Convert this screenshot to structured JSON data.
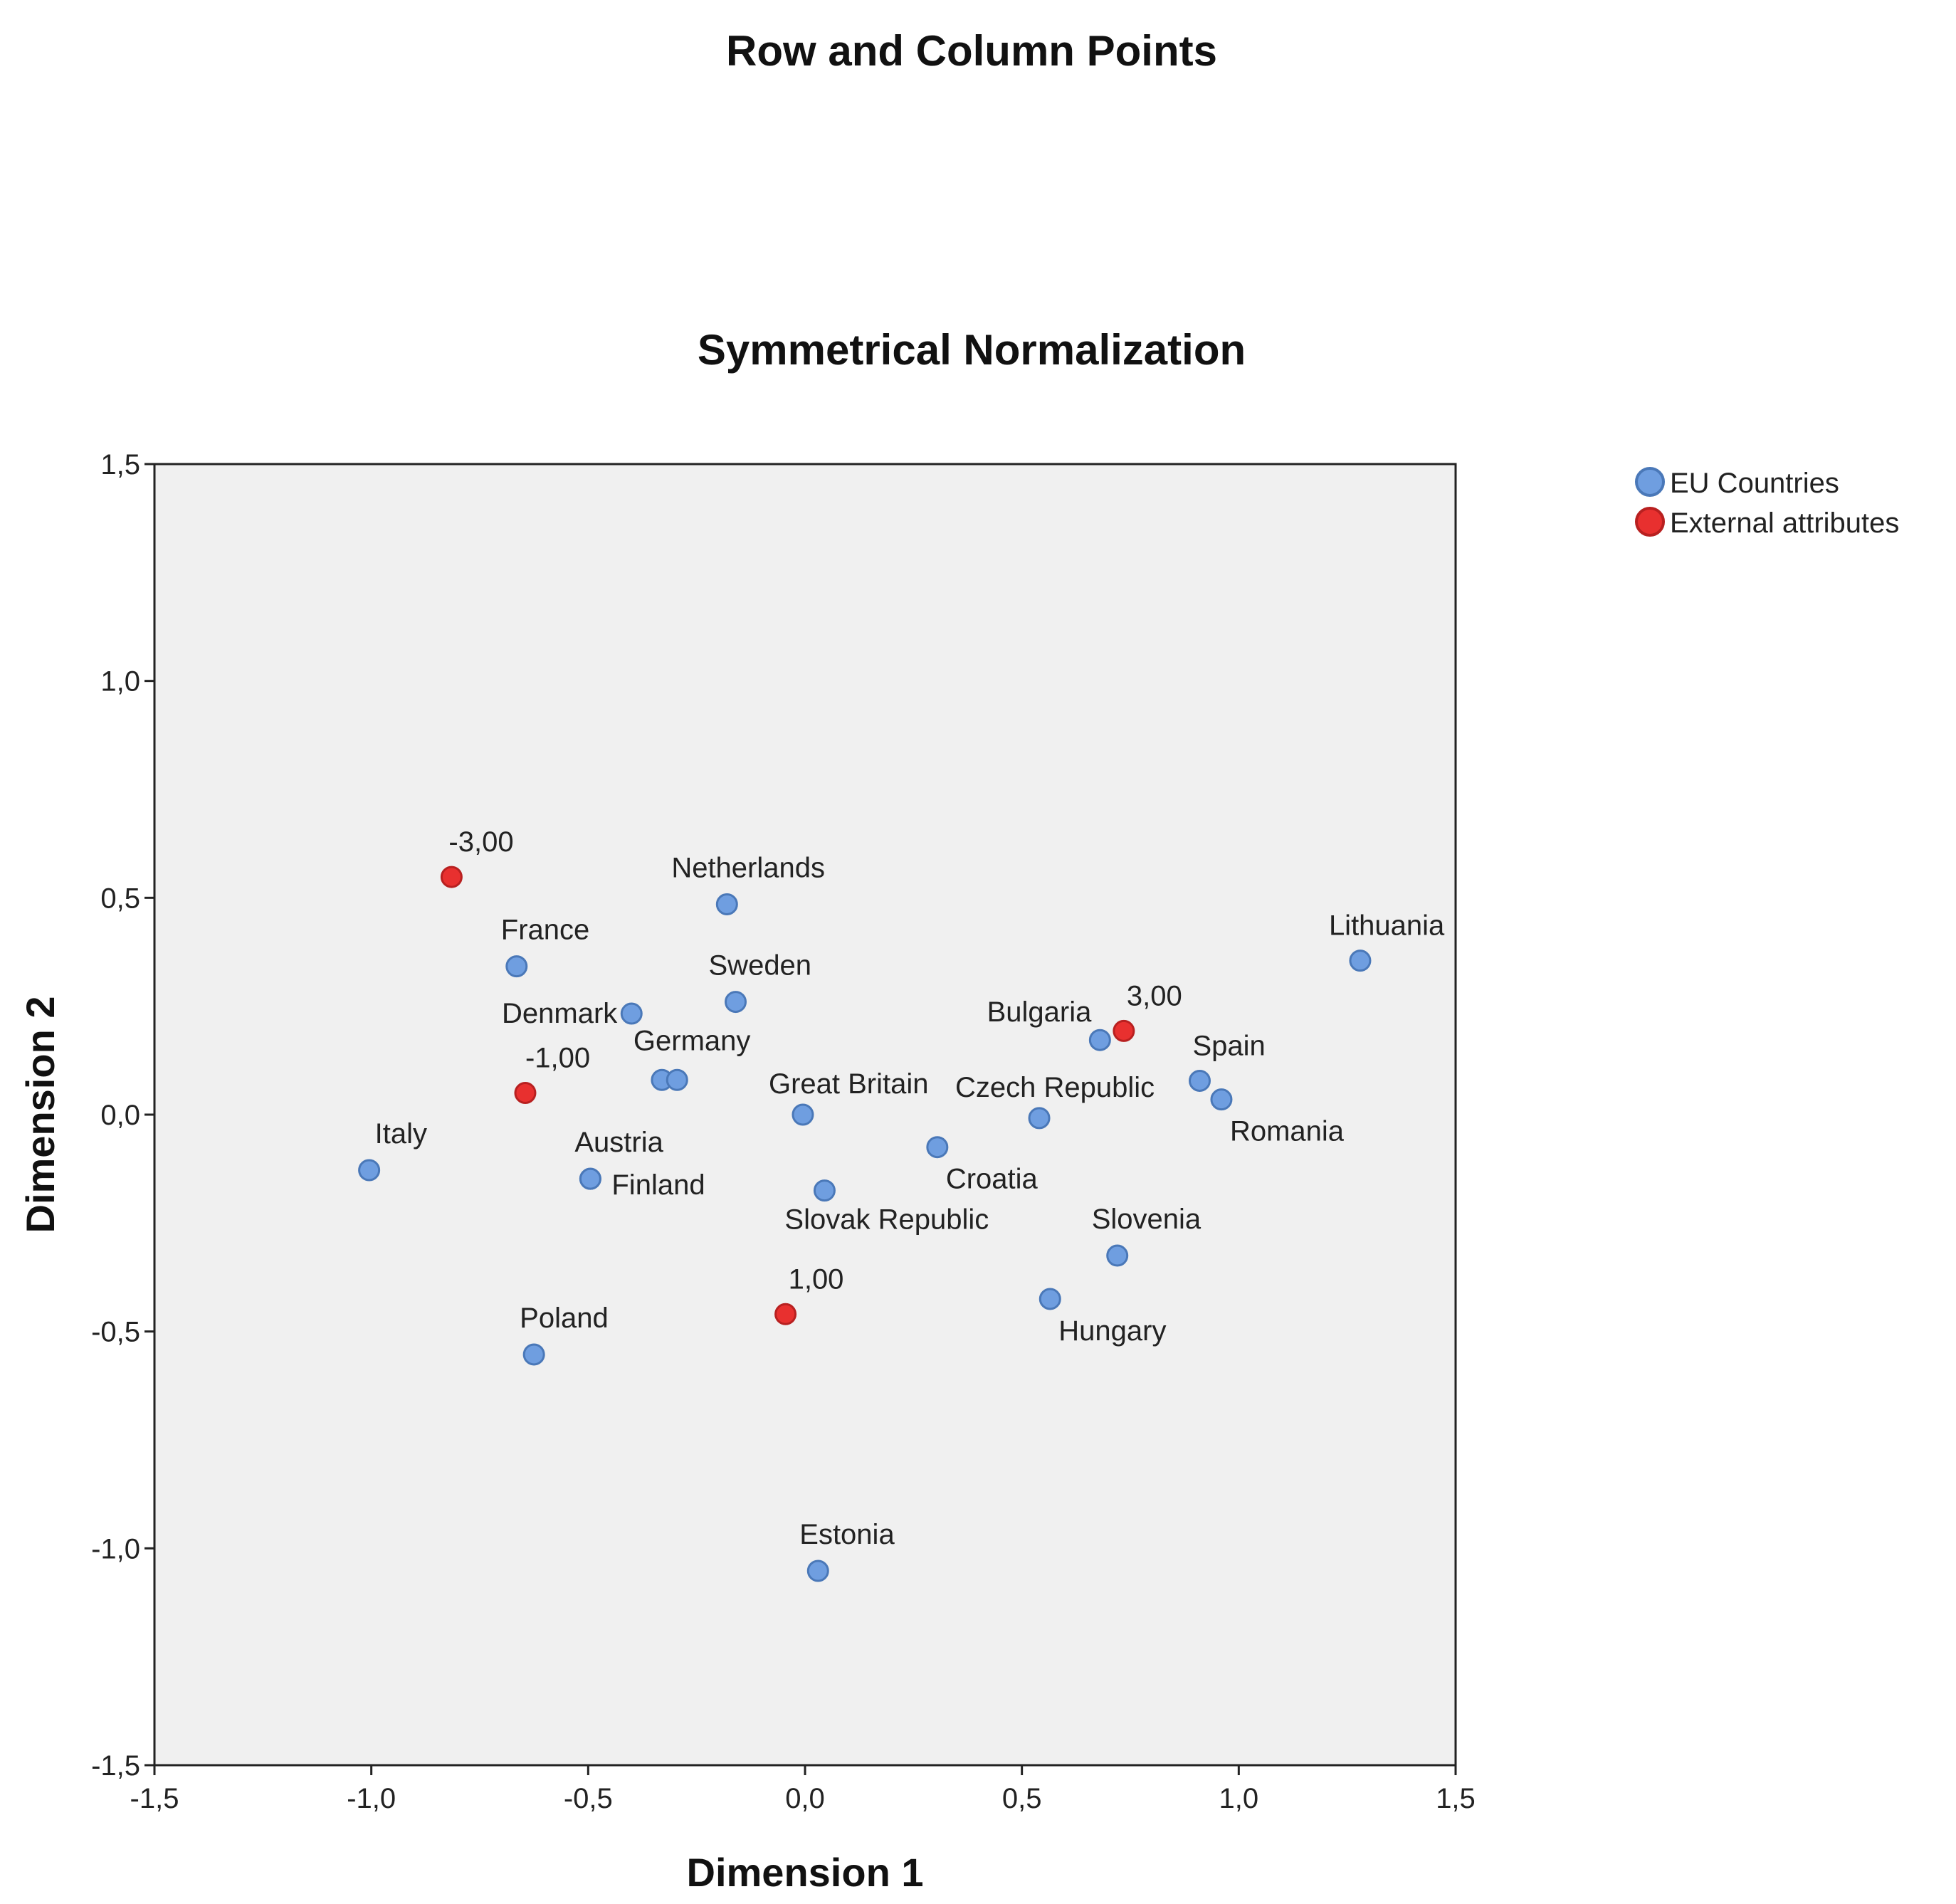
{
  "chart_data": {
    "type": "scatter",
    "title": "Row and Column Points",
    "subtitle": "Symmetrical Normalization",
    "xlabel": "Dimension 1",
    "ylabel": "Dimension 2",
    "xlim": [
      -1.5,
      1.5
    ],
    "ylim": [
      -1.5,
      1.5
    ],
    "xticks": [
      "-1,5",
      "-1,0",
      "-0,5",
      "0,0",
      "0,5",
      "1,0",
      "1,5"
    ],
    "yticks": [
      "1,5",
      "1,0",
      "0,5",
      "0,0",
      "-0,5",
      "-1,0",
      "-1,5"
    ],
    "grid": false,
    "plot_background": "#f0f0f0",
    "legend_position": "top-right",
    "series": [
      {
        "name": "EU Countries",
        "color": "#6f9ee0",
        "points": [
          {
            "label": "Netherlands",
            "x": -0.18,
            "y": 0.485
          },
          {
            "label": "France",
            "x": -0.665,
            "y": 0.342
          },
          {
            "label": "Sweden",
            "x": -0.16,
            "y": 0.26
          },
          {
            "label": "Denmark",
            "x": -0.4,
            "y": 0.233
          },
          {
            "label": "Germany",
            "x": -0.33,
            "y": 0.08
          },
          {
            "label": "",
            "x": -0.295,
            "y": 0.08
          },
          {
            "label": "Great Britain",
            "x": -0.005,
            "y": 0.0
          },
          {
            "label": "Czech Republic",
            "x": 0.54,
            "y": -0.008
          },
          {
            "label": "Bulgaria",
            "x": 0.68,
            "y": 0.172
          },
          {
            "label": "Spain",
            "x": 0.91,
            "y": 0.078
          },
          {
            "label": "Romania",
            "x": 0.96,
            "y": 0.035
          },
          {
            "label": "Lithuania",
            "x": 1.28,
            "y": 0.355
          },
          {
            "label": "Italy",
            "x": -1.005,
            "y": -0.128
          },
          {
            "label": "Austria",
            "x": -0.495,
            "y": -0.148
          },
          {
            "label": "Finland",
            "x": -0.495,
            "y": -0.148
          },
          {
            "label": "Croatia",
            "x": 0.305,
            "y": -0.075
          },
          {
            "label": "Slovak Republic",
            "x": 0.045,
            "y": -0.175
          },
          {
            "label": "Slovenia",
            "x": 0.72,
            "y": -0.325
          },
          {
            "label": "Hungary",
            "x": 0.565,
            "y": -0.425
          },
          {
            "label": "Poland",
            "x": -0.625,
            "y": -0.553
          },
          {
            "label": "Estonia",
            "x": 0.03,
            "y": -1.052
          }
        ]
      },
      {
        "name": "External attributes",
        "color": "#e8302f",
        "points": [
          {
            "label": "-3,00",
            "x": -0.815,
            "y": 0.548
          },
          {
            "label": "-1,00",
            "x": -0.645,
            "y": 0.05
          },
          {
            "label": "3,00",
            "x": 0.735,
            "y": 0.193
          },
          {
            "label": "1,00",
            "x": -0.045,
            "y": -0.46
          }
        ]
      }
    ]
  }
}
